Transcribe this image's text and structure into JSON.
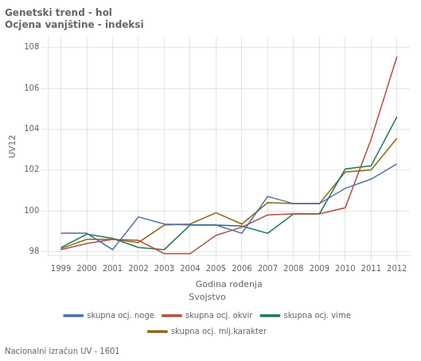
{
  "chart_data": {
    "type": "line",
    "title": "Genetski trend - hol",
    "subtitle": "Ocjena vanjštine - indeksi",
    "x_label": "Godina rođenja",
    "y_label": "UV12",
    "annotations": [
      "Nacionalni izračun UV - 1601"
    ],
    "legend_title": "Svojstvo",
    "x": [
      1999,
      2000,
      2001,
      2002,
      2003,
      2004,
      2005,
      2006,
      2007,
      2008,
      2009,
      2010,
      2011,
      2012
    ],
    "series": [
      {
        "name": "skupna ocj. noge",
        "color": "#4f6faf",
        "values": [
          98.9,
          98.9,
          98.1,
          99.7,
          99.35,
          99.3,
          99.3,
          98.9,
          100.7,
          100.35,
          100.35,
          101.1,
          101.55,
          102.3
        ]
      },
      {
        "name": "skupna ocj. okvir",
        "color": "#b05040",
        "values": [
          98.1,
          98.4,
          98.6,
          98.55,
          97.9,
          97.9,
          98.8,
          99.2,
          99.8,
          99.85,
          99.85,
          100.15,
          103.5,
          107.55
        ]
      },
      {
        "name": "skupna ocj. vime",
        "color": "#1a7a5e",
        "values": [
          98.2,
          98.85,
          98.65,
          98.2,
          98.1,
          99.3,
          99.3,
          99.25,
          98.9,
          99.85,
          99.85,
          102.05,
          102.2,
          104.6
        ]
      },
      {
        "name": "skupna ocj. mlj.karakter",
        "color": "#8b6914",
        "values": [
          98.15,
          98.6,
          98.6,
          98.45,
          99.3,
          99.35,
          99.9,
          99.35,
          100.4,
          100.35,
          100.35,
          101.9,
          102.0,
          103.55
        ]
      }
    ],
    "xlim": [
      1998.5,
      2012.5
    ],
    "xticks": [
      1999,
      2000,
      2001,
      2002,
      2003,
      2004,
      2005,
      2006,
      2007,
      2008,
      2009,
      2010,
      2011,
      2012
    ],
    "ylim": [
      97.8,
      108.5
    ],
    "yticks": [
      98,
      100,
      102,
      104,
      106,
      108
    ],
    "grid": true,
    "legend": "bottom"
  }
}
